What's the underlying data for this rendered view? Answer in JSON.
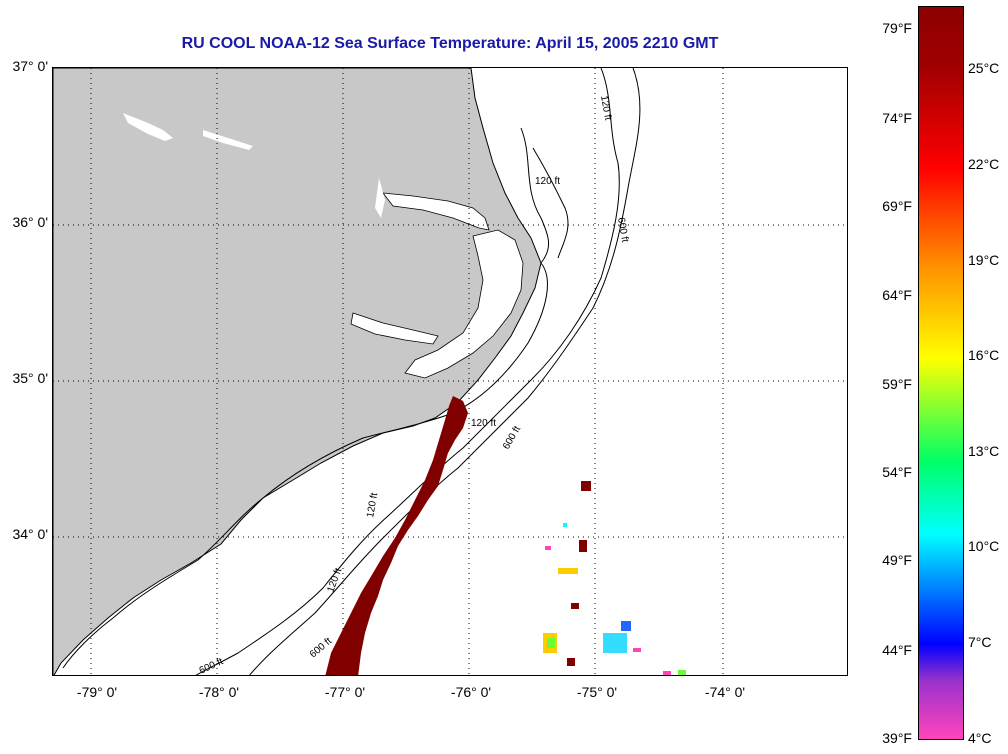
{
  "title": "RU COOL  NOAA-12  Sea Surface Temperature:  April 15, 2005 2210 GMT",
  "map": {
    "lat_labels": [
      "37° 0'",
      "36° 0'",
      "35° 0'",
      "34° 0'"
    ],
    "lon_labels": [
      "-79° 0'",
      "-78° 0'",
      "-77° 0'",
      "-76° 0'",
      "-75° 0'",
      "-74° 0'"
    ],
    "isobath_labels": [
      "120 ft",
      "120 ft",
      "600 ft",
      "120 ft",
      "600 ft",
      "120 ft",
      "600 ft",
      "120 ft",
      "600 ft"
    ],
    "land_color": "#c8c8c8",
    "warm_water_color": "#800000"
  },
  "colorbar": {
    "fahrenheit_labels": [
      "79°F",
      "74°F",
      "69°F",
      "64°F",
      "59°F",
      "54°F",
      "49°F",
      "44°F",
      "39°F"
    ],
    "celsius_labels": [
      "25°C",
      "22°C",
      "19°C",
      "16°C",
      "13°C",
      "10°C",
      "7°C",
      "4°C"
    ],
    "gradient_colors": [
      "#8b0000",
      "#ff0000",
      "#ff8c00",
      "#ffff00",
      "#00ff66",
      "#00ffff",
      "#0000ff",
      "#9932cc",
      "#ff44bb"
    ]
  }
}
